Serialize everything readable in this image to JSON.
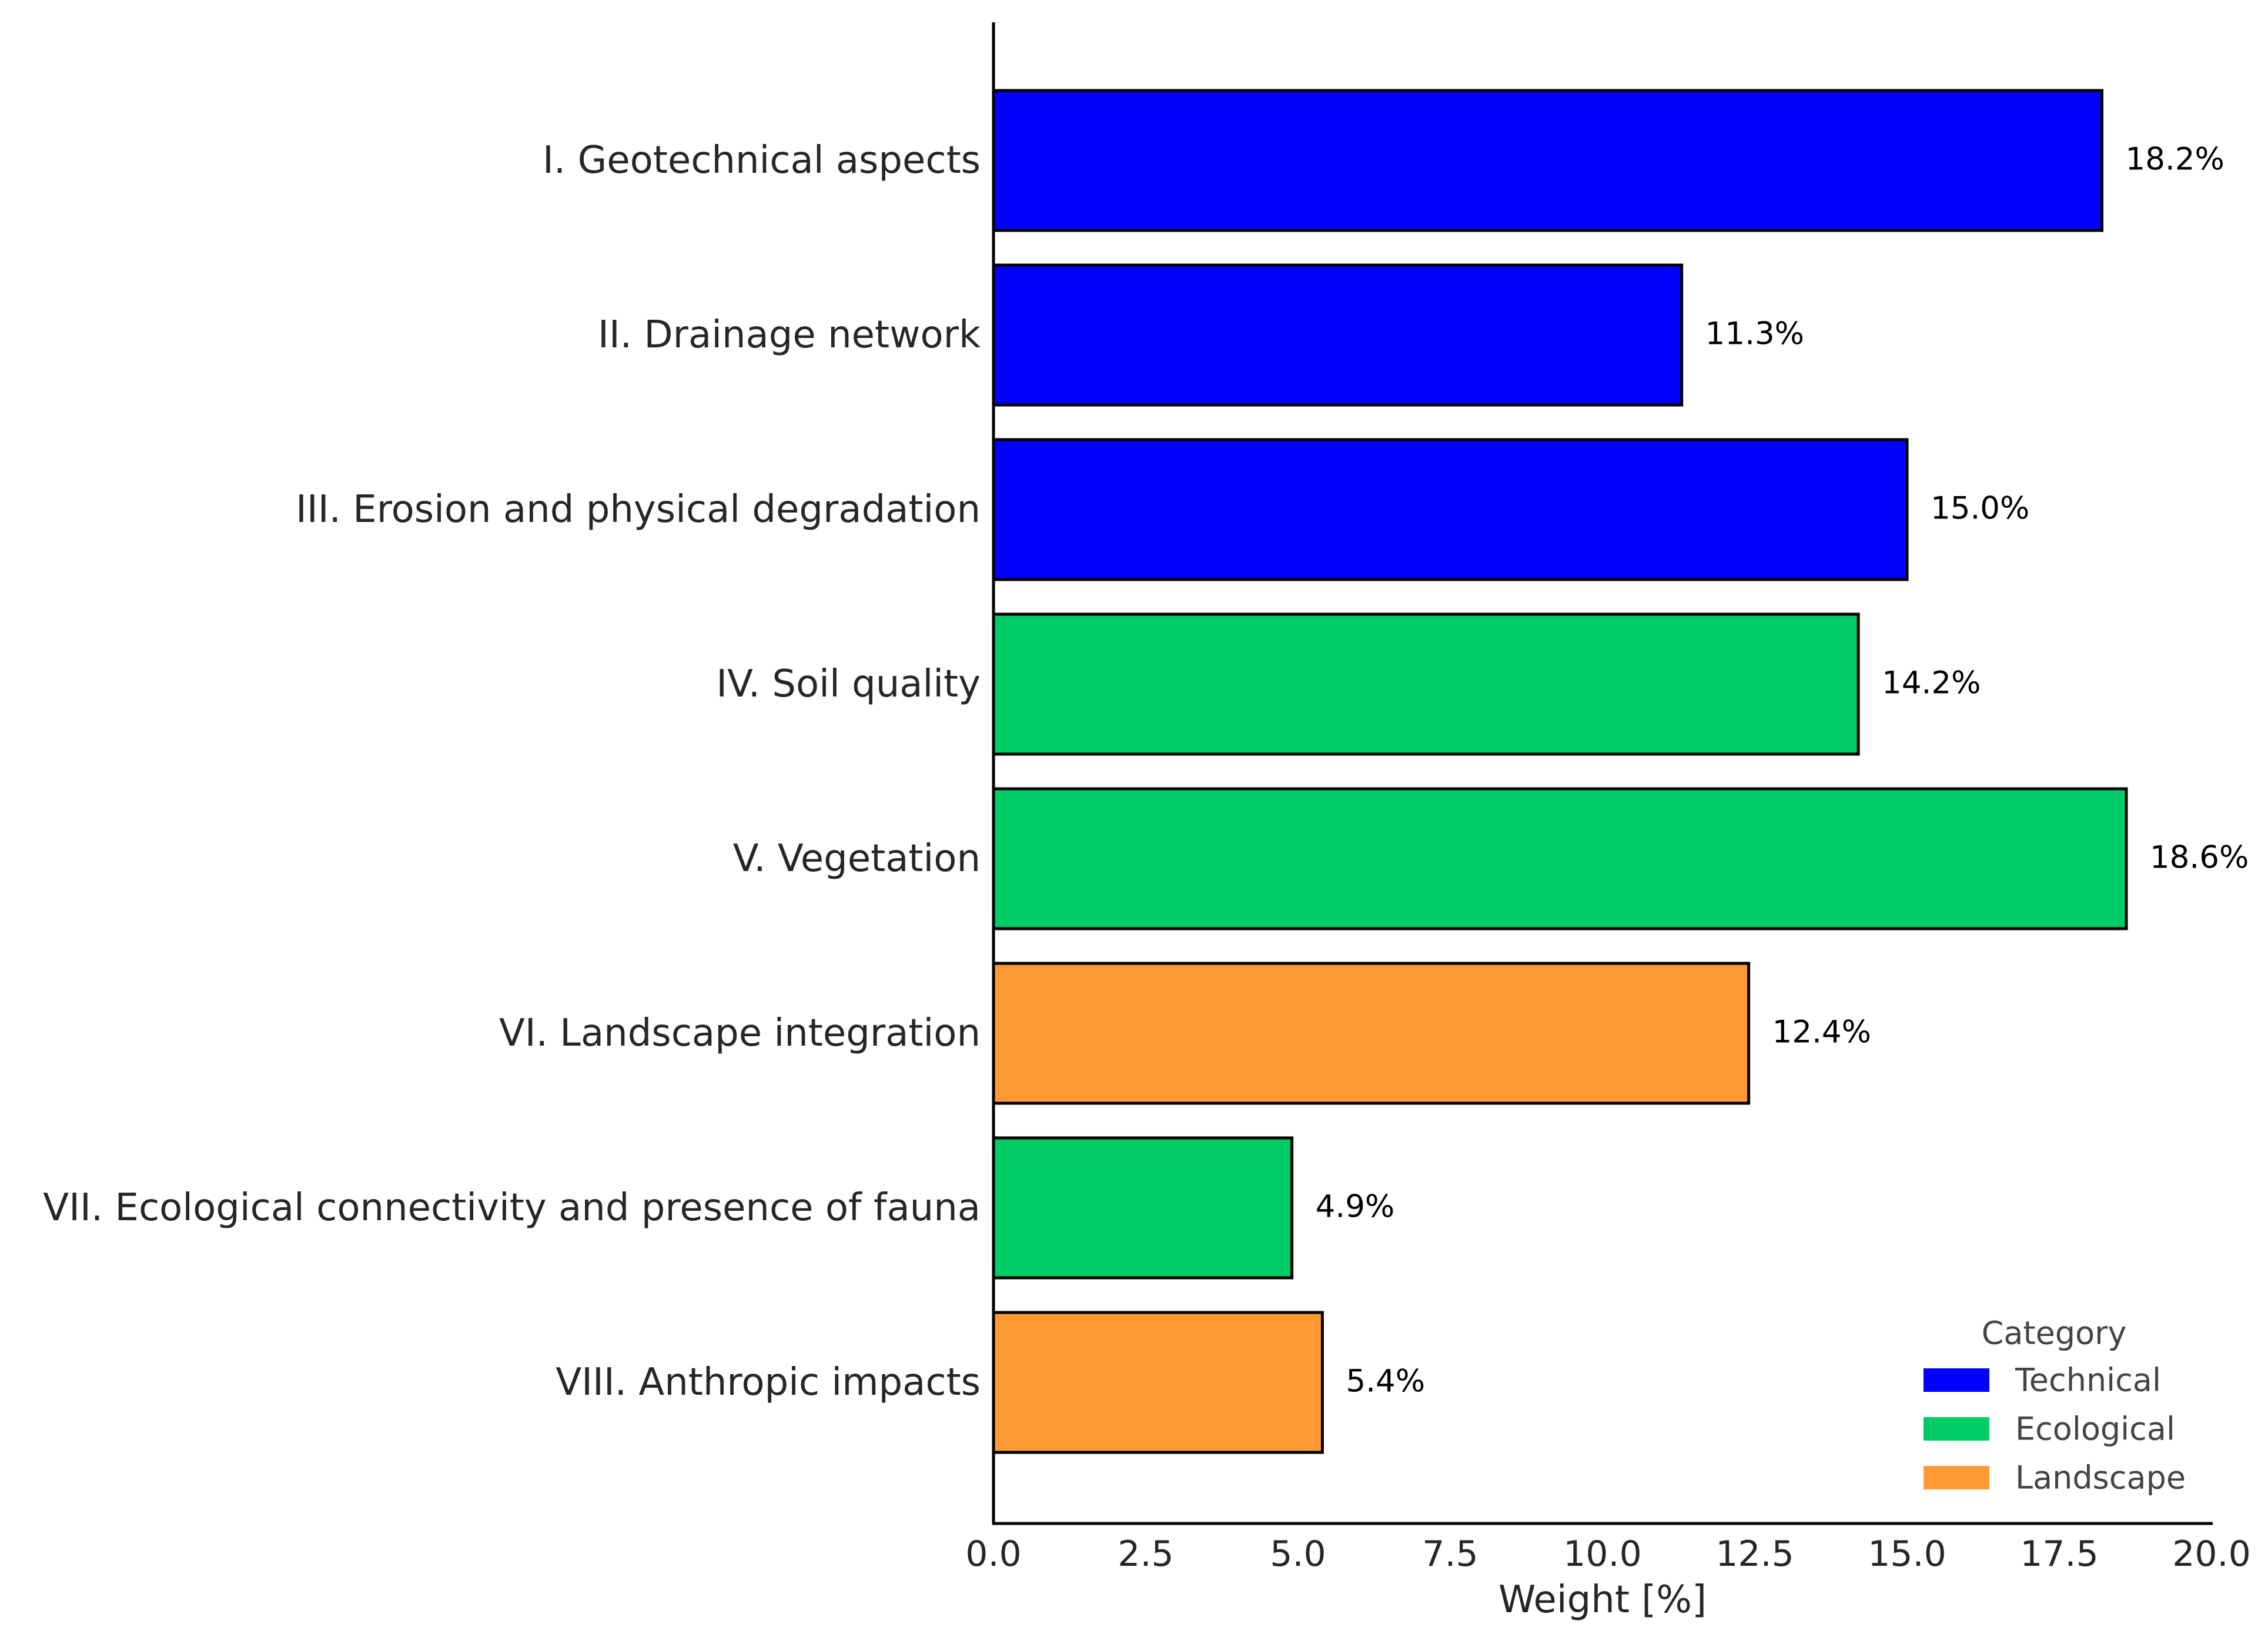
{
  "chart_data": {
    "type": "bar",
    "orientation": "horizontal",
    "title": "",
    "xlabel": "Weight [%]",
    "ylabel": "",
    "xlim": [
      0,
      20
    ],
    "xticks": [
      0,
      2.5,
      5,
      7.5,
      10,
      12.5,
      15,
      17.5,
      20
    ],
    "xtick_labels": [
      "0.0",
      "2.5",
      "5.0",
      "7.5",
      "10.0",
      "12.5",
      "15.0",
      "17.5",
      "20.0"
    ],
    "grid": false,
    "legend_position": "bottom-right",
    "legend_title": "Category",
    "categories": [
      {
        "name": "Technical",
        "color": "#0000ff"
      },
      {
        "name": "Ecological",
        "color": "#00cc66"
      },
      {
        "name": "Landscape",
        "color": "#ff9933"
      }
    ],
    "bars": [
      {
        "label": "I. Geotechnical aspects",
        "value": 18.2,
        "value_label": "18.2%",
        "category": "Technical"
      },
      {
        "label": "II. Drainage network",
        "value": 11.3,
        "value_label": "11.3%",
        "category": "Technical"
      },
      {
        "label": "III. Erosion and physical degradation",
        "value": 15.0,
        "value_label": "15.0%",
        "category": "Technical"
      },
      {
        "label": "IV. Soil quality",
        "value": 14.2,
        "value_label": "14.2%",
        "category": "Ecological"
      },
      {
        "label": "V. Vegetation",
        "value": 18.6,
        "value_label": "18.6%",
        "category": "Ecological"
      },
      {
        "label": "VI. Landscape integration",
        "value": 12.4,
        "value_label": "12.4%",
        "category": "Landscape"
      },
      {
        "label": "VII. Ecological connectivity and presence of fauna",
        "value": 4.9,
        "value_label": "4.9%",
        "category": "Ecological"
      },
      {
        "label": "VIII. Anthropic impacts",
        "value": 5.4,
        "value_label": "5.4%",
        "category": "Landscape"
      }
    ]
  }
}
